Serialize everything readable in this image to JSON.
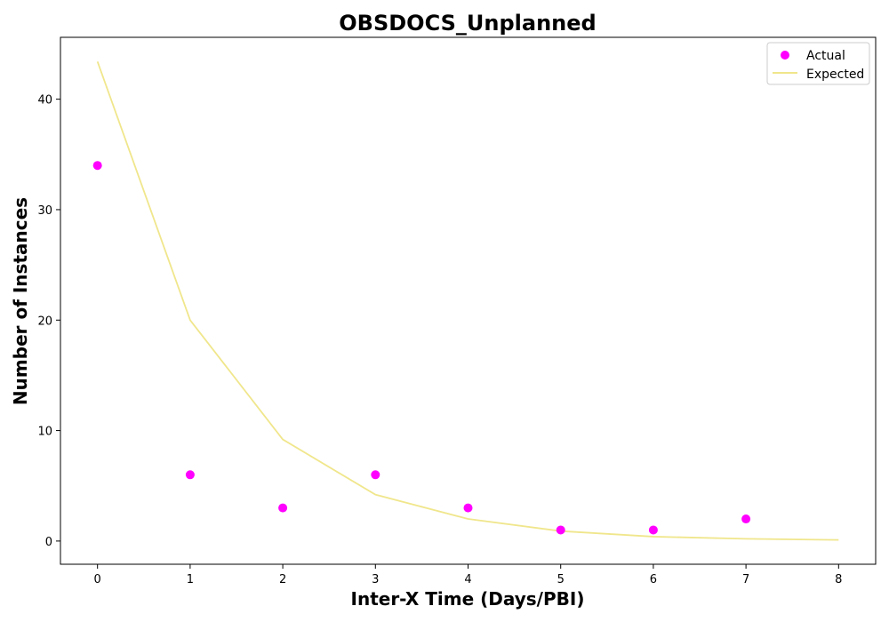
{
  "chart_data": {
    "type": "scatter",
    "title": "OBSDOCS_Unplanned",
    "xlabel": "Inter-X Time (Days/PBI)",
    "ylabel": "Number of Instances",
    "xlim": [
      -0.4,
      8.4
    ],
    "ylim": [
      -2.1,
      45.6
    ],
    "xticks": [
      0,
      1,
      2,
      3,
      4,
      5,
      6,
      7,
      8
    ],
    "yticks": [
      0,
      10,
      20,
      30,
      40
    ],
    "grid": false,
    "legend_position": "top-right",
    "series": [
      {
        "name": "Actual",
        "kind": "scatter",
        "color": "#ff00ff",
        "x": [
          0,
          1,
          2,
          3,
          4,
          5,
          6,
          7
        ],
        "y": [
          34,
          6,
          3,
          6,
          3,
          1,
          1,
          2
        ]
      },
      {
        "name": "Expected",
        "kind": "line",
        "color": "#f0e68c",
        "x": [
          0,
          1,
          2,
          3,
          4,
          5,
          6,
          7,
          8
        ],
        "y": [
          43.4,
          20.0,
          9.2,
          4.2,
          2.0,
          0.9,
          0.4,
          0.2,
          0.1
        ]
      }
    ]
  }
}
